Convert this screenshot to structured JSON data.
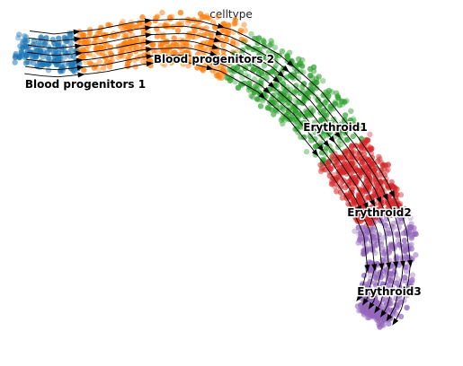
{
  "chart_data": {
    "type": "scatter",
    "title": "celltype",
    "xlabel": "",
    "ylabel": "",
    "legend": "on data",
    "grid": false,
    "overlay": "velocity streamlines with arrowheads",
    "series": [
      {
        "name": "Blood progenitors 1",
        "color": "#1f77b4"
      },
      {
        "name": "Blood progenitors 2",
        "color": "#ff7f0e"
      },
      {
        "name": "Erythroid1",
        "color": "#2ca02c"
      },
      {
        "name": "Erythroid2",
        "color": "#d62728"
      },
      {
        "name": "Erythroid3",
        "color": "#9467bd"
      }
    ]
  }
}
